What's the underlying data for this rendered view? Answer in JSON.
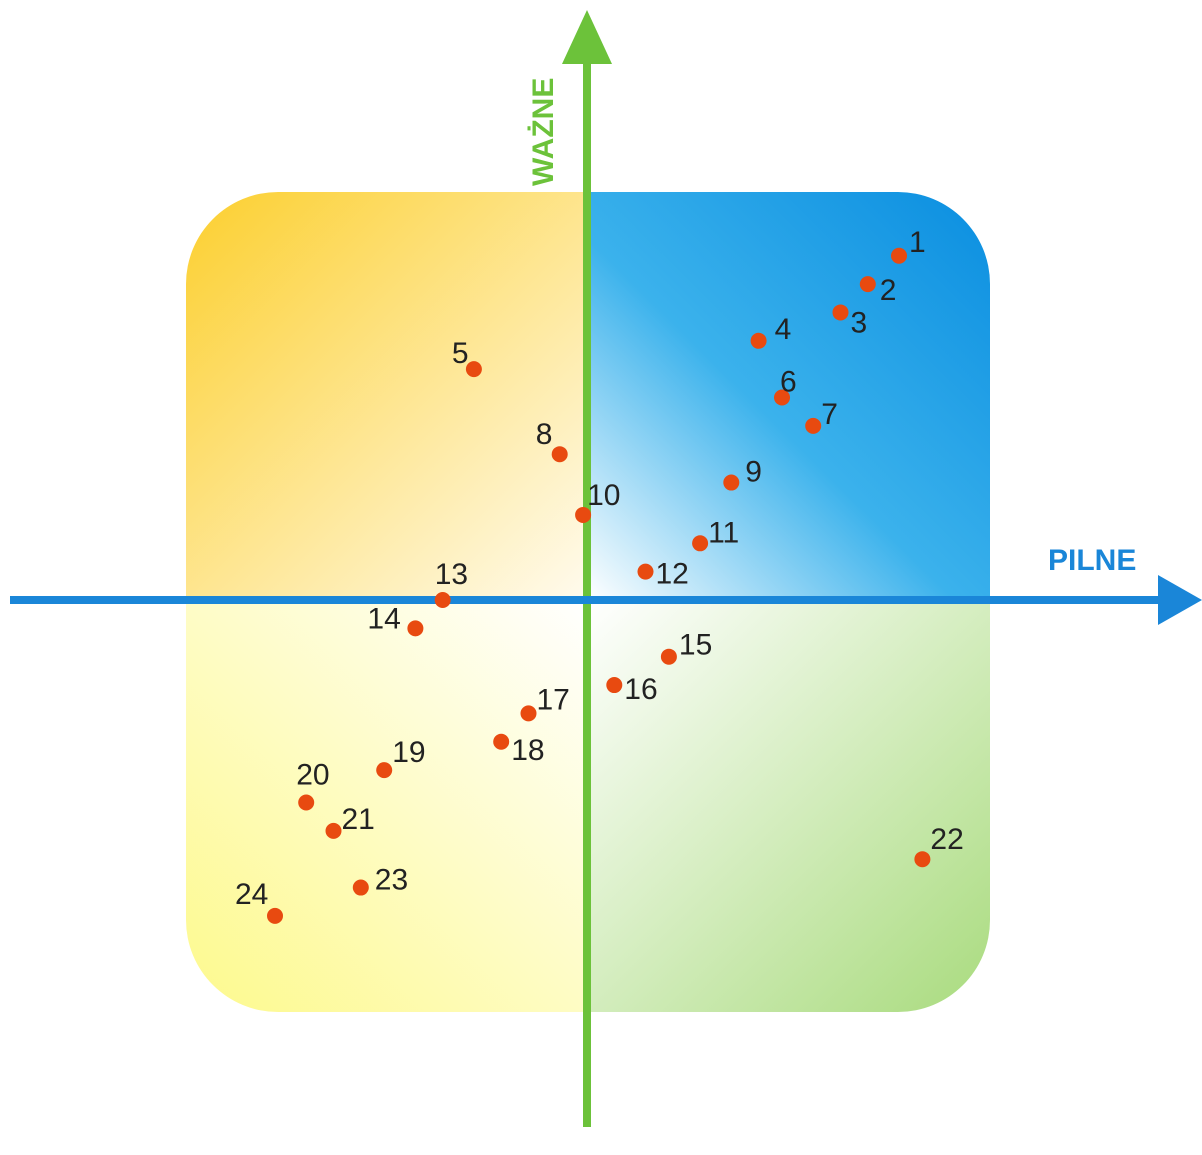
{
  "axes": {
    "x_label": "PILNE",
    "y_label": "WAŻNE",
    "x_color": "#1a86d8",
    "y_color": "#6cc23a"
  },
  "colors": {
    "point": "#e84a10",
    "quadrant_top_left": "#fccf2e",
    "quadrant_top_right": "#0a8ee0",
    "quadrant_bottom_left": "#fdf98c",
    "quadrant_bottom_right": "#a9db7e"
  },
  "chart_data": {
    "type": "scatter",
    "points": [
      {
        "label": "1",
        "x": 0.8,
        "y": 0.85
      },
      {
        "label": "2",
        "x": 0.72,
        "y": 0.78
      },
      {
        "label": "3",
        "x": 0.65,
        "y": 0.71
      },
      {
        "label": "4",
        "x": 0.44,
        "y": 0.64
      },
      {
        "label": "5",
        "x": -0.29,
        "y": 0.57
      },
      {
        "label": "6",
        "x": 0.5,
        "y": 0.5
      },
      {
        "label": "7",
        "x": 0.58,
        "y": 0.43
      },
      {
        "label": "8",
        "x": -0.07,
        "y": 0.36
      },
      {
        "label": "9",
        "x": 0.37,
        "y": 0.29
      },
      {
        "label": "10",
        "x": -0.01,
        "y": 0.21
      },
      {
        "label": "11",
        "x": 0.29,
        "y": 0.14
      },
      {
        "label": "12",
        "x": 0.15,
        "y": 0.07
      },
      {
        "label": "13",
        "x": -0.37,
        "y": 0.0
      },
      {
        "label": "14",
        "x": -0.44,
        "y": -0.07
      },
      {
        "label": "15",
        "x": 0.21,
        "y": -0.14
      },
      {
        "label": "16",
        "x": 0.07,
        "y": -0.21
      },
      {
        "label": "17",
        "x": -0.15,
        "y": -0.28
      },
      {
        "label": "18",
        "x": -0.22,
        "y": -0.35
      },
      {
        "label": "19",
        "x": -0.52,
        "y": -0.42
      },
      {
        "label": "20",
        "x": -0.72,
        "y": -0.5
      },
      {
        "label": "21",
        "x": -0.65,
        "y": -0.57
      },
      {
        "label": "22",
        "x": 0.86,
        "y": -0.64
      },
      {
        "label": "23",
        "x": -0.58,
        "y": -0.71
      },
      {
        "label": "24",
        "x": -0.8,
        "y": -0.78
      }
    ]
  }
}
